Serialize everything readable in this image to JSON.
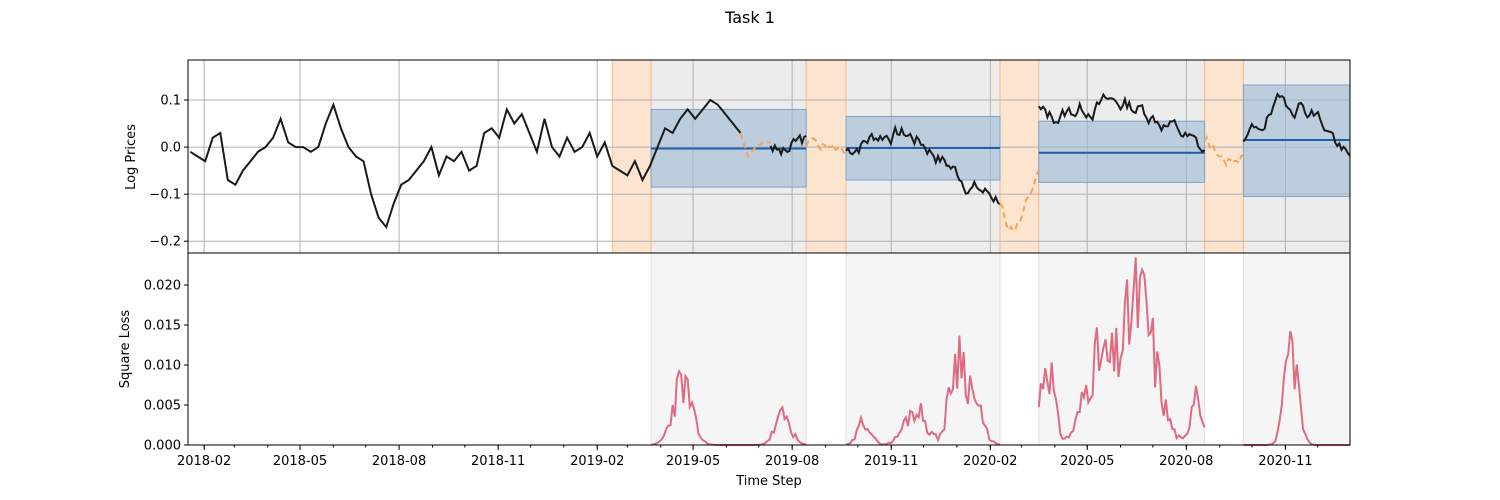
{
  "figure": {
    "title": "Task 1"
  },
  "colors": {
    "price_line": "#1a1a1a",
    "forecast_dashed": "#f5a35c",
    "context_band": "#fde4cf",
    "eval_region": "#ececec",
    "interval_band": "#9dbbd6",
    "mean_line": "#1f5fa6",
    "loss_line": "#e06a82",
    "grid": "#b0b0b0"
  },
  "chart_data": [
    {
      "type": "line",
      "panel": "top",
      "ylabel": "Log Prices",
      "ylim": [
        -0.225,
        0.185
      ],
      "yticks": [
        -0.2,
        -0.1,
        0.0,
        0.1
      ],
      "ytick_labels": [
        "−0.2",
        "−0.1",
        "0.0",
        "0.1"
      ],
      "grid": true,
      "xlim": [
        "2018-01-17",
        "2020-12-31"
      ],
      "series": [
        {
          "role": "observed",
          "style": "solid",
          "points": [
            [
              "2018-01-19",
              -0.01
            ],
            [
              "2018-01-26",
              -0.02
            ],
            [
              "2018-02-02",
              -0.03
            ],
            [
              "2018-02-09",
              0.02
            ],
            [
              "2018-02-16",
              0.03
            ],
            [
              "2018-02-23",
              -0.07
            ],
            [
              "2018-03-02",
              -0.08
            ],
            [
              "2018-03-09",
              -0.05
            ],
            [
              "2018-03-16",
              -0.03
            ],
            [
              "2018-03-23",
              -0.01
            ],
            [
              "2018-03-30",
              0.0
            ],
            [
              "2018-04-06",
              0.02
            ],
            [
              "2018-04-13",
              0.06
            ],
            [
              "2018-04-20",
              0.01
            ],
            [
              "2018-04-27",
              0.0
            ],
            [
              "2018-05-04",
              0.0
            ],
            [
              "2018-05-11",
              -0.01
            ],
            [
              "2018-05-18",
              0.0
            ],
            [
              "2018-05-25",
              0.05
            ],
            [
              "2018-06-01",
              0.09
            ],
            [
              "2018-06-08",
              0.04
            ],
            [
              "2018-06-15",
              0.0
            ],
            [
              "2018-06-22",
              -0.02
            ],
            [
              "2018-06-29",
              -0.03
            ],
            [
              "2018-07-06",
              -0.1
            ],
            [
              "2018-07-13",
              -0.15
            ],
            [
              "2018-07-20",
              -0.17
            ],
            [
              "2018-07-27",
              -0.12
            ],
            [
              "2018-08-03",
              -0.08
            ],
            [
              "2018-08-10",
              -0.07
            ],
            [
              "2018-08-17",
              -0.05
            ],
            [
              "2018-08-24",
              -0.03
            ],
            [
              "2018-08-31",
              0.0
            ],
            [
              "2018-09-07",
              -0.06
            ],
            [
              "2018-09-14",
              -0.02
            ],
            [
              "2018-09-21",
              -0.03
            ],
            [
              "2018-09-28",
              -0.01
            ],
            [
              "2018-10-05",
              -0.05
            ],
            [
              "2018-10-12",
              -0.04
            ],
            [
              "2018-10-19",
              0.03
            ],
            [
              "2018-10-26",
              0.04
            ],
            [
              "2018-11-02",
              0.02
            ],
            [
              "2018-11-09",
              0.08
            ],
            [
              "2018-11-16",
              0.05
            ],
            [
              "2018-11-23",
              0.07
            ],
            [
              "2018-11-30",
              0.03
            ],
            [
              "2018-12-07",
              -0.01
            ],
            [
              "2018-12-14",
              0.06
            ],
            [
              "2018-12-21",
              0.0
            ],
            [
              "2018-12-28",
              -0.02
            ],
            [
              "2019-01-04",
              0.02
            ],
            [
              "2019-01-11",
              -0.01
            ],
            [
              "2019-01-18",
              0.0
            ],
            [
              "2019-01-25",
              0.03
            ],
            [
              "2019-02-01",
              -0.02
            ],
            [
              "2019-02-08",
              0.01
            ],
            [
              "2019-02-15",
              -0.04
            ],
            [
              "2019-02-22",
              -0.05
            ],
            [
              "2019-03-01",
              -0.06
            ],
            [
              "2019-03-08",
              -0.03
            ],
            [
              "2019-03-15",
              -0.07
            ],
            [
              "2019-03-22",
              -0.04
            ],
            [
              "2019-03-29",
              0.0
            ],
            [
              "2019-04-05",
              0.04
            ],
            [
              "2019-04-12",
              0.03
            ],
            [
              "2019-04-19",
              0.06
            ],
            [
              "2019-04-26",
              0.08
            ],
            [
              "2019-05-03",
              0.06
            ],
            [
              "2019-05-10",
              0.08
            ],
            [
              "2019-05-17",
              0.1
            ],
            [
              "2019-05-24",
              0.09
            ],
            [
              "2019-05-31",
              0.07
            ],
            [
              "2019-06-07",
              0.05
            ],
            [
              "2019-06-14",
              0.03
            ]
          ]
        },
        {
          "role": "context-dashed",
          "style": "dashed",
          "points": [
            [
              "2019-06-14",
              0.03
            ],
            [
              "2019-06-21",
              -0.02
            ],
            [
              "2019-06-28",
              0.0
            ],
            [
              "2019-07-05",
              0.01
            ],
            [
              "2019-07-12",
              0.01
            ]
          ]
        }
      ]
    },
    {
      "type": "line",
      "panel": "bottom",
      "xlabel": "Time Step",
      "ylabel": "Square Loss",
      "ylim": [
        0,
        0.024
      ],
      "yticks": [
        0,
        0.005,
        0.01,
        0.015,
        0.02
      ],
      "ytick_labels": [
        "0.000",
        "0.005",
        "0.010",
        "0.015",
        "0.020"
      ],
      "xticks": [
        "2018-02",
        "2018-05",
        "2018-08",
        "2018-11",
        "2019-02",
        "2019-05",
        "2019-08",
        "2019-11",
        "2020-02",
        "2020-05",
        "2020-08",
        "2020-11"
      ],
      "grid": false
    }
  ]
}
